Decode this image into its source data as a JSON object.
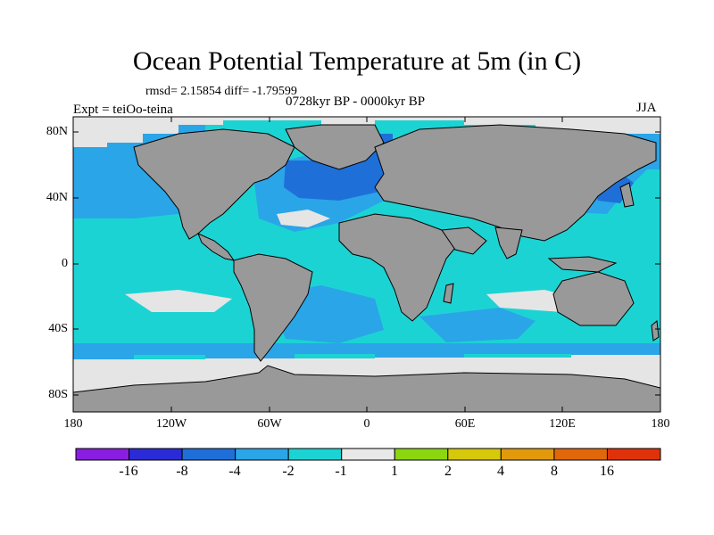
{
  "title": "Ocean Potential Temperature at 5m (in C)",
  "stats": "rmsd= 2.15854 diff= -1.79599",
  "period": "0728kyr BP - 0000kyr BP",
  "experiment": "Expt = teiOo-teina",
  "season": "JJA",
  "map": {
    "land_color": "#999999",
    "missing_color": "#e5e5e5",
    "lat_ticks": [
      "80N",
      "40N",
      "0",
      "40S",
      "80S"
    ],
    "lon_ticks": [
      "180",
      "120W",
      "60W",
      "0",
      "60E",
      "120E",
      "180"
    ]
  },
  "colorbar": {
    "colors": [
      "#8a1ee0",
      "#2b2bd6",
      "#1f6fd9",
      "#2aa5e8",
      "#1cd3d3",
      "#e8e8e8",
      "#8cd60f",
      "#d6c80a",
      "#e29a0c",
      "#e0680a",
      "#e0320a"
    ],
    "labels": [
      "-16",
      "-8",
      "-4",
      "-2",
      "-1",
      "1",
      "2",
      "4",
      "8",
      "16"
    ]
  }
}
